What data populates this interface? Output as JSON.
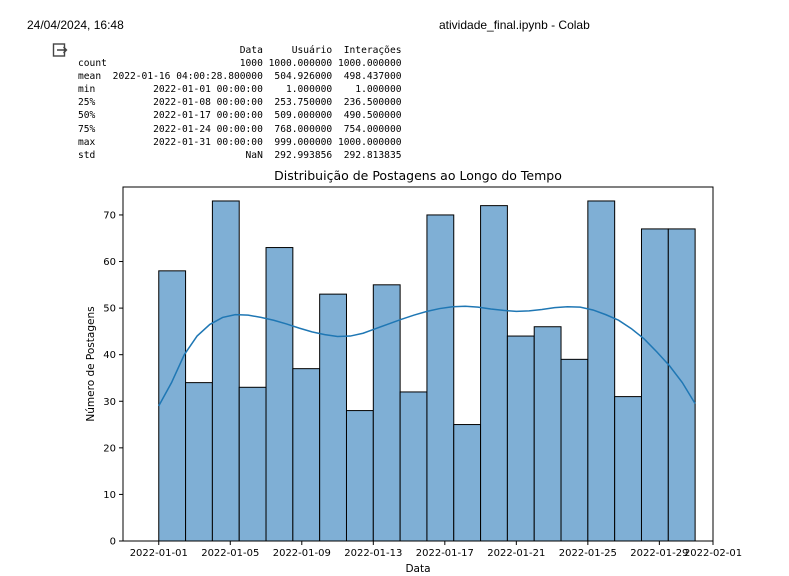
{
  "header": {
    "datetime": "24/04/2024, 16:48",
    "title": "atividade_final.ipynb - Colab"
  },
  "output_icon": "output-toggle-icon",
  "describe_table": {
    "columns": [
      "Data",
      "Usuário",
      "Interações"
    ],
    "rows": [
      {
        "label": "count",
        "values": [
          "1000",
          "1000.000000",
          "1000.000000"
        ]
      },
      {
        "label": "mean",
        "values": [
          "2022-01-16 04:00:28.800000",
          "504.926000",
          "498.437000"
        ]
      },
      {
        "label": "min",
        "values": [
          "2022-01-01 00:00:00",
          "1.000000",
          "1.000000"
        ]
      },
      {
        "label": "25%",
        "values": [
          "2022-01-08 00:00:00",
          "253.750000",
          "236.500000"
        ]
      },
      {
        "label": "50%",
        "values": [
          "2022-01-17 00:00:00",
          "509.000000",
          "490.500000"
        ]
      },
      {
        "label": "75%",
        "values": [
          "2022-01-24 00:00:00",
          "768.000000",
          "754.000000"
        ]
      },
      {
        "label": "max",
        "values": [
          "2022-01-31 00:00:00",
          "999.000000",
          "1000.000000"
        ]
      },
      {
        "label": "std",
        "values": [
          "NaN",
          "292.993856",
          "292.813835"
        ]
      }
    ]
  },
  "chart_data": {
    "type": "bar",
    "title": "Distribuição de Postagens ao Longo do Tempo",
    "xlabel": "Data",
    "ylabel": "Número de Postagens",
    "ylim": [
      0,
      76
    ],
    "xlim": [
      "2021-12-30",
      "2022-02-01"
    ],
    "yticks": [
      0,
      10,
      20,
      30,
      40,
      50,
      60,
      70
    ],
    "xticks": [
      "2022-01-01",
      "2022-01-05",
      "2022-01-09",
      "2022-01-13",
      "2022-01-17",
      "2022-01-21",
      "2022-01-25",
      "2022-01-29",
      "2022-02-01"
    ],
    "bin_start": "2022-01-01",
    "bin_end": "2022-01-31",
    "values": [
      58,
      34,
      73,
      33,
      63,
      37,
      53,
      28,
      55,
      32,
      70,
      25,
      72,
      44,
      46,
      39,
      73,
      31,
      67,
      67
    ],
    "kde": [
      29,
      34,
      40,
      44,
      46.5,
      48,
      48.6,
      48.5,
      48,
      47.4,
      46.6,
      45.7,
      44.9,
      44.3,
      43.9,
      44,
      44.6,
      45.6,
      46.6,
      47.6,
      48.5,
      49.3,
      49.9,
      50.3,
      50.4,
      50.2,
      49.8,
      49.5,
      49.3,
      49.4,
      49.7,
      50.1,
      50.3,
      50.2,
      49.6,
      48.6,
      47.4,
      45.6,
      43.4,
      40.6,
      37.6,
      34,
      29.5
    ],
    "bar_color": "#7fafd5",
    "edge_color": "#000000",
    "kde_color": "#1f77b4",
    "legend": false,
    "grid": false
  }
}
